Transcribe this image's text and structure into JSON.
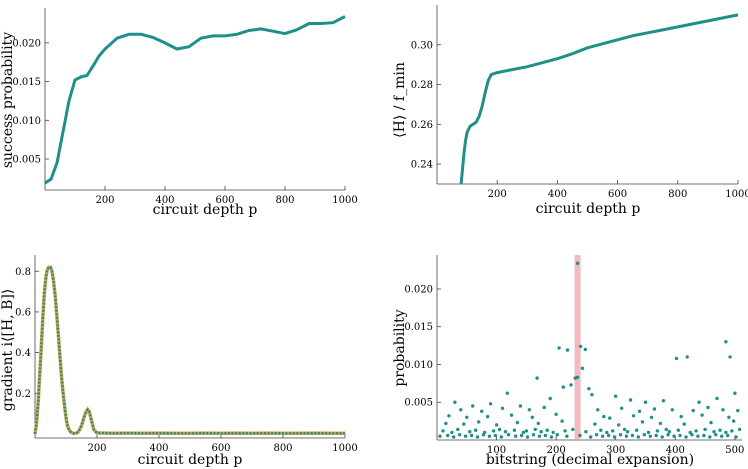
{
  "colors": {
    "series": "#1f8f8c",
    "highlight": "#f2a0a8",
    "axis": "#444444",
    "accent_dots": "#d9a441"
  },
  "panels": [
    {
      "id": "success-probability",
      "chart_data": {
        "type": "line",
        "title": "",
        "xlabel": "circuit depth p",
        "ylabel": "success probability",
        "xlim": [
          0,
          1000
        ],
        "ylim": [
          0.001,
          0.0245
        ],
        "xticks": [
          200,
          400,
          600,
          800,
          1000
        ],
        "yticks": [
          0.005,
          0.01,
          0.015,
          0.02
        ],
        "ytick_labels": [
          "0.005",
          "0.010",
          "0.015",
          "0.020"
        ],
        "grid": false,
        "x": [
          0,
          20,
          40,
          60,
          80,
          100,
          120,
          140,
          160,
          180,
          200,
          240,
          280,
          320,
          360,
          400,
          440,
          480,
          520,
          560,
          600,
          640,
          680,
          720,
          760,
          800,
          840,
          880,
          920,
          960,
          1000
        ],
        "values": [
          0.0019,
          0.0024,
          0.0045,
          0.0085,
          0.0125,
          0.0152,
          0.0156,
          0.0158,
          0.017,
          0.0183,
          0.0192,
          0.0206,
          0.0211,
          0.0211,
          0.0207,
          0.02,
          0.0192,
          0.0195,
          0.0206,
          0.0209,
          0.0209,
          0.0211,
          0.0216,
          0.0218,
          0.0215,
          0.0212,
          0.0217,
          0.0225,
          0.0225,
          0.0226,
          0.0234
        ]
      }
    },
    {
      "id": "mean-energy",
      "chart_data": {
        "type": "line",
        "title": "",
        "xlabel": "circuit depth p",
        "ylabel": "⟨H⟩ / f_min",
        "xlim": [
          0,
          1000
        ],
        "ylim": [
          0.23,
          0.32
        ],
        "xticks": [
          200,
          400,
          600,
          800,
          1000
        ],
        "yticks": [
          0.24,
          0.26,
          0.28,
          0.3
        ],
        "ytick_labels": [
          "0.24",
          "0.26",
          "0.28",
          "0.30"
        ],
        "grid": false,
        "x": [
          80,
          85,
          90,
          95,
          100,
          110,
          120,
          130,
          140,
          150,
          160,
          170,
          180,
          190,
          200,
          250,
          300,
          350,
          400,
          450,
          500,
          550,
          600,
          650,
          700,
          750,
          800,
          850,
          900,
          950,
          1000
        ],
        "values": [
          0.23,
          0.238,
          0.246,
          0.252,
          0.256,
          0.259,
          0.26,
          0.261,
          0.264,
          0.269,
          0.276,
          0.282,
          0.285,
          0.2855,
          0.286,
          0.2875,
          0.289,
          0.291,
          0.293,
          0.2955,
          0.2985,
          0.3005,
          0.3025,
          0.3045,
          0.306,
          0.3075,
          0.309,
          0.3105,
          0.312,
          0.3135,
          0.315
        ]
      }
    },
    {
      "id": "gradient",
      "chart_data": {
        "type": "line",
        "title": "",
        "xlabel": "circuit depth p",
        "ylabel": "gradient i⟨[H, B]⟩",
        "xlim": [
          0,
          1000
        ],
        "ylim": [
          -0.02,
          0.88
        ],
        "xticks": [
          200,
          400,
          600,
          800,
          1000
        ],
        "yticks": [
          0.2,
          0.4,
          0.6,
          0.8
        ],
        "ytick_labels": [
          "0.2",
          "0.4",
          "0.6",
          "0.8"
        ],
        "grid": false,
        "x": [
          0,
          5,
          10,
          15,
          20,
          25,
          30,
          35,
          40,
          45,
          50,
          55,
          60,
          65,
          70,
          75,
          80,
          85,
          90,
          95,
          100,
          105,
          110,
          115,
          120,
          125,
          130,
          140,
          150,
          160,
          165,
          170,
          175,
          180,
          190,
          200,
          250,
          300,
          350,
          400,
          450,
          500,
          550,
          600,
          650,
          700,
          750,
          800,
          850,
          900,
          950,
          1000
        ],
        "values": [
          0.0,
          0.05,
          0.15,
          0.28,
          0.42,
          0.57,
          0.69,
          0.77,
          0.81,
          0.82,
          0.82,
          0.8,
          0.75,
          0.68,
          0.59,
          0.49,
          0.39,
          0.29,
          0.21,
          0.14,
          0.08,
          0.04,
          0.02,
          0.01,
          0.005,
          0.003,
          0.002,
          0.01,
          0.04,
          0.09,
          0.11,
          0.12,
          0.11,
          0.08,
          0.02,
          0.005,
          0.003,
          0.004,
          0.003,
          0.004,
          0.003,
          0.003,
          0.004,
          0.003,
          0.004,
          0.003,
          0.004,
          0.003,
          0.003,
          0.004,
          0.003,
          0.003
        ]
      }
    },
    {
      "id": "probability",
      "chart_data": {
        "type": "scatter",
        "title": "",
        "xlabel": "bitstring (decimal expansion)",
        "ylabel": "probability",
        "xlim": [
          0,
          512
        ],
        "ylim": [
          0,
          0.0245
        ],
        "xticks": [
          100,
          200,
          300,
          400,
          500
        ],
        "yticks": [
          0.005,
          0.01,
          0.015,
          0.02
        ],
        "ytick_labels": [
          "0.005",
          "0.010",
          "0.015",
          "0.020"
        ],
        "grid": false,
        "highlight_x": 236,
        "points": [
          [
            236,
            0.0234
          ],
          [
            236,
            0.0083
          ],
          [
            241,
            0.0124
          ],
          [
            219,
            0.0119
          ],
          [
            205,
            0.0122
          ],
          [
            249,
            0.012
          ],
          [
            485,
            0.013
          ],
          [
            492,
            0.011
          ],
          [
            402,
            0.0108
          ],
          [
            420,
            0.011
          ],
          [
            244,
            0.0095
          ],
          [
            232,
            0.0082
          ],
          [
            168,
            0.0082
          ],
          [
            225,
            0.0073
          ],
          [
            255,
            0.0068
          ],
          [
            260,
            0.006
          ],
          [
            118,
            0.0062
          ],
          [
            212,
            0.007
          ],
          [
            190,
            0.0055
          ],
          [
            300,
            0.0058
          ],
          [
            325,
            0.0053
          ],
          [
            350,
            0.005
          ],
          [
            380,
            0.0052
          ],
          [
            440,
            0.005
          ],
          [
            470,
            0.0055
          ],
          [
            500,
            0.0062
          ],
          [
            30,
            0.005
          ],
          [
            60,
            0.0045
          ],
          [
            90,
            0.0048
          ],
          [
            140,
            0.0045
          ],
          [
            40,
            0.004
          ],
          [
            75,
            0.0038
          ],
          [
            110,
            0.0042
          ],
          [
            155,
            0.004
          ],
          [
            180,
            0.0043
          ],
          [
            270,
            0.004
          ],
          [
            310,
            0.0042
          ],
          [
            340,
            0.0038
          ],
          [
            365,
            0.0041
          ],
          [
            395,
            0.004
          ],
          [
            430,
            0.0039
          ],
          [
            455,
            0.0043
          ],
          [
            480,
            0.004
          ],
          [
            505,
            0.0039
          ],
          [
            20,
            0.0032
          ],
          [
            50,
            0.003
          ],
          [
            85,
            0.0031
          ],
          [
            125,
            0.0033
          ],
          [
            160,
            0.003
          ],
          [
            200,
            0.0034
          ],
          [
            280,
            0.0031
          ],
          [
            290,
            0.0029
          ],
          [
            330,
            0.0032
          ],
          [
            360,
            0.003
          ],
          [
            410,
            0.0031
          ],
          [
            445,
            0.0033
          ],
          [
            490,
            0.003
          ],
          [
            15,
            0.0022
          ],
          [
            45,
            0.0021
          ],
          [
            70,
            0.0024
          ],
          [
            100,
            0.002
          ],
          [
            135,
            0.0023
          ],
          [
            170,
            0.0022
          ],
          [
            210,
            0.0025
          ],
          [
            265,
            0.0021
          ],
          [
            305,
            0.002
          ],
          [
            345,
            0.0024
          ],
          [
            375,
            0.0022
          ],
          [
            415,
            0.0021
          ],
          [
            460,
            0.0023
          ],
          [
            498,
            0.0025
          ],
          [
            10,
            0.0012
          ],
          [
            25,
            0.001
          ],
          [
            35,
            0.0014
          ],
          [
            55,
            0.0011
          ],
          [
            65,
            0.0013
          ],
          [
            80,
            0.001
          ],
          [
            95,
            0.0012
          ],
          [
            105,
            0.0014
          ],
          [
            115,
            0.0011
          ],
          [
            130,
            0.0013
          ],
          [
            145,
            0.001
          ],
          [
            150,
            0.0012
          ],
          [
            165,
            0.0014
          ],
          [
            175,
            0.0011
          ],
          [
            185,
            0.0013
          ],
          [
            195,
            0.001
          ],
          [
            215,
            0.0012
          ],
          [
            228,
            0.0014
          ],
          [
            250,
            0.0011
          ],
          [
            275,
            0.0013
          ],
          [
            285,
            0.001
          ],
          [
            295,
            0.0012
          ],
          [
            315,
            0.0014
          ],
          [
            320,
            0.0011
          ],
          [
            335,
            0.0013
          ],
          [
            355,
            0.001
          ],
          [
            370,
            0.0012
          ],
          [
            385,
            0.0014
          ],
          [
            390,
            0.0011
          ],
          [
            405,
            0.0013
          ],
          [
            425,
            0.001
          ],
          [
            435,
            0.0012
          ],
          [
            450,
            0.0014
          ],
          [
            465,
            0.0011
          ],
          [
            475,
            0.0013
          ],
          [
            485,
            0.001
          ],
          [
            495,
            0.0012
          ],
          [
            508,
            0.0014
          ],
          [
            5,
            0.0005
          ],
          [
            18,
            0.0006
          ],
          [
            28,
            0.0004
          ],
          [
            38,
            0.0007
          ],
          [
            48,
            0.0005
          ],
          [
            58,
            0.0006
          ],
          [
            68,
            0.0004
          ],
          [
            78,
            0.0007
          ],
          [
            88,
            0.0005
          ],
          [
            98,
            0.0006
          ],
          [
            108,
            0.0004
          ],
          [
            120,
            0.0007
          ],
          [
            132,
            0.0005
          ],
          [
            142,
            0.0006
          ],
          [
            152,
            0.0004
          ],
          [
            162,
            0.0007
          ],
          [
            172,
            0.0005
          ],
          [
            182,
            0.0006
          ],
          [
            192,
            0.0004
          ],
          [
            202,
            0.0007
          ],
          [
            218,
            0.0005
          ],
          [
            240,
            0.0006
          ],
          [
            258,
            0.0004
          ],
          [
            268,
            0.0007
          ],
          [
            278,
            0.0005
          ],
          [
            288,
            0.0006
          ],
          [
            298,
            0.0004
          ],
          [
            308,
            0.0007
          ],
          [
            318,
            0.0005
          ],
          [
            328,
            0.0006
          ],
          [
            338,
            0.0004
          ],
          [
            348,
            0.0007
          ],
          [
            358,
            0.0005
          ],
          [
            368,
            0.0006
          ],
          [
            378,
            0.0004
          ],
          [
            388,
            0.0007
          ],
          [
            398,
            0.0005
          ],
          [
            408,
            0.0006
          ],
          [
            418,
            0.0004
          ],
          [
            428,
            0.0007
          ],
          [
            438,
            0.0005
          ],
          [
            448,
            0.0006
          ],
          [
            458,
            0.0004
          ],
          [
            468,
            0.0007
          ],
          [
            478,
            0.0005
          ],
          [
            488,
            0.0006
          ],
          [
            502,
            0.0004
          ]
        ]
      }
    }
  ]
}
